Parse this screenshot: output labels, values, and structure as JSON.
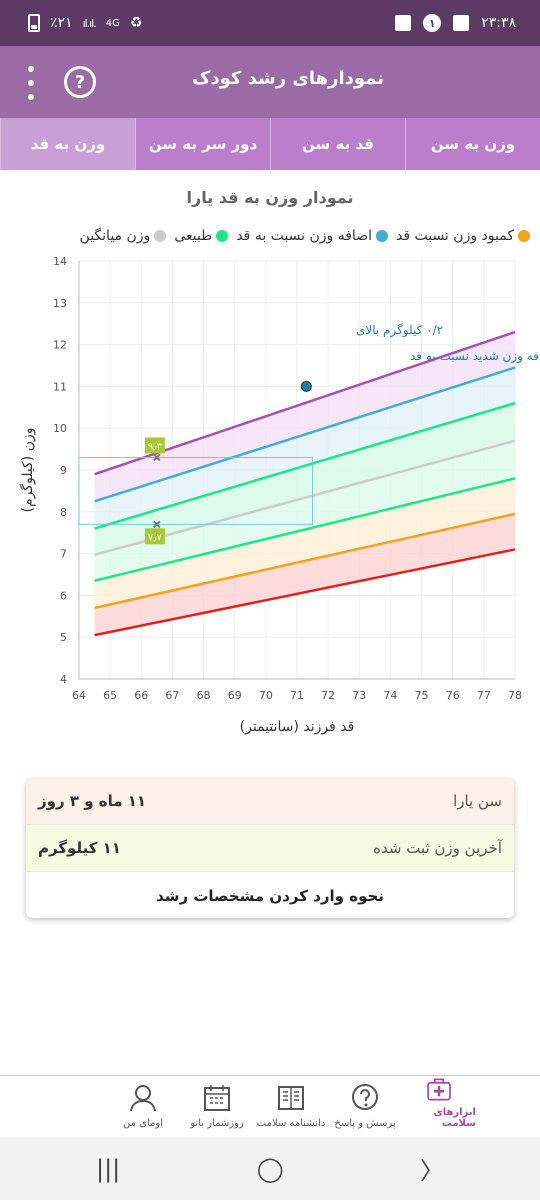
{
  "status_bar": {
    "battery": "٪۲۱",
    "signal": "ıl.ıl.",
    "network": "4G",
    "time": "۲۳:۳۸",
    "notification_count": "۱"
  },
  "app_bar": {
    "title": "نمودارهای رشد کودک",
    "help_symbol": "?"
  },
  "tabs": [
    {
      "label": "وزن به سن",
      "active": false
    },
    {
      "label": "قد به سن",
      "active": false
    },
    {
      "label": "دور سر به سن",
      "active": false
    },
    {
      "label": "وزن به قد",
      "active": true
    }
  ],
  "chart_title": "نمودار وزن به قد یارا",
  "legend": [
    {
      "label": "کمبود وزن نسبت قد",
      "color": "#f4a21b"
    },
    {
      "label": "اضافه وزن نسبت به قد",
      "color": "#43aed3"
    },
    {
      "label": "طبیعی",
      "color": "#1de58a"
    },
    {
      "label": "وزن میانگین",
      "color": "#cccccc"
    }
  ],
  "chart_data": {
    "type": "line",
    "xlabel": "قد فرزند (سانتیمتر)",
    "ylabel": "وزن (کیلوگرم)",
    "xlim": [
      64,
      78
    ],
    "ylim": [
      4,
      14
    ],
    "x_ticks": [
      64,
      65,
      66,
      67,
      68,
      69,
      70,
      71,
      72,
      73,
      74,
      75,
      76,
      77,
      78
    ],
    "y_ticks": [
      4,
      5,
      6,
      7,
      8,
      9,
      10,
      11,
      12,
      13,
      14
    ],
    "grid": true,
    "series": [
      {
        "color": "#e02020",
        "x": [
          64.5,
          78
        ],
        "y": [
          5.05,
          7.1
        ]
      },
      {
        "color": "#f4a21b",
        "x": [
          64.5,
          78
        ],
        "y": [
          5.7,
          7.95
        ]
      },
      {
        "color": "#1de58a",
        "x": [
          64.5,
          78
        ],
        "y": [
          6.35,
          8.8
        ]
      },
      {
        "color": "#cccccc",
        "x": [
          64.5,
          78
        ],
        "y": [
          6.97,
          9.7
        ]
      },
      {
        "color": "#1de58a",
        "x": [
          64.5,
          78
        ],
        "y": [
          7.6,
          10.6
        ]
      },
      {
        "color": "#43aed3",
        "x": [
          64.5,
          78
        ],
        "y": [
          8.25,
          11.45
        ]
      },
      {
        "color": "#a94fb3",
        "x": [
          64.5,
          78
        ],
        "y": [
          8.9,
          12.3
        ]
      }
    ],
    "bands": [
      {
        "color": "#ffd0d0",
        "lower": 0,
        "upper": 1
      },
      {
        "color": "#ffefd6",
        "lower": 1,
        "upper": 2
      },
      {
        "color": "#d9fbe9",
        "lower": 2,
        "upper": 4
      },
      {
        "color": "#d9fbe9",
        "lower": 3,
        "upper": 4
      },
      {
        "color": "#dff0f8",
        "lower": 4,
        "upper": 5
      },
      {
        "color": "#f1dff6",
        "lower": 5,
        "upper": 6
      }
    ],
    "child_point": {
      "x": 71.3,
      "y": 11.0
    },
    "normal_range": {
      "x": 66.5,
      "y_low": 7.7,
      "y_high": 9.3,
      "x_end": 71.5
    },
    "range_labels": {
      "high": "۹٫۳",
      "low": "۷٫۷"
    },
    "annotation": [
      "۰/۲ کیلوگرم بالای",
      "محدوده اضافه وزن شدید نسبت به قد"
    ]
  },
  "info": {
    "age_label": "سن یارا",
    "age_value": "۱۱ ماه و ۳ روز",
    "weight_label": "آخرین وزن ثبت شده",
    "weight_value": "۱۱ کیلوگرم",
    "howto": "نحوه وارد کردن مشخصات رشد"
  },
  "bottom_nav": [
    {
      "label": "ابزارهای سلامت",
      "icon": "first-aid-kit-icon",
      "active": true
    },
    {
      "label": "پرسش و پاسخ",
      "icon": "question-bubble-icon",
      "active": false
    },
    {
      "label": "دانشنامه سلامت",
      "icon": "encyclopedia-icon",
      "active": false
    },
    {
      "label": "روزشمار بانو",
      "icon": "calendar-icon",
      "active": false
    },
    {
      "label": "اومای من",
      "icon": "profile-icon",
      "active": false
    }
  ],
  "system_nav": {
    "recents": "|||",
    "home": "◯",
    "back": "〉"
  }
}
